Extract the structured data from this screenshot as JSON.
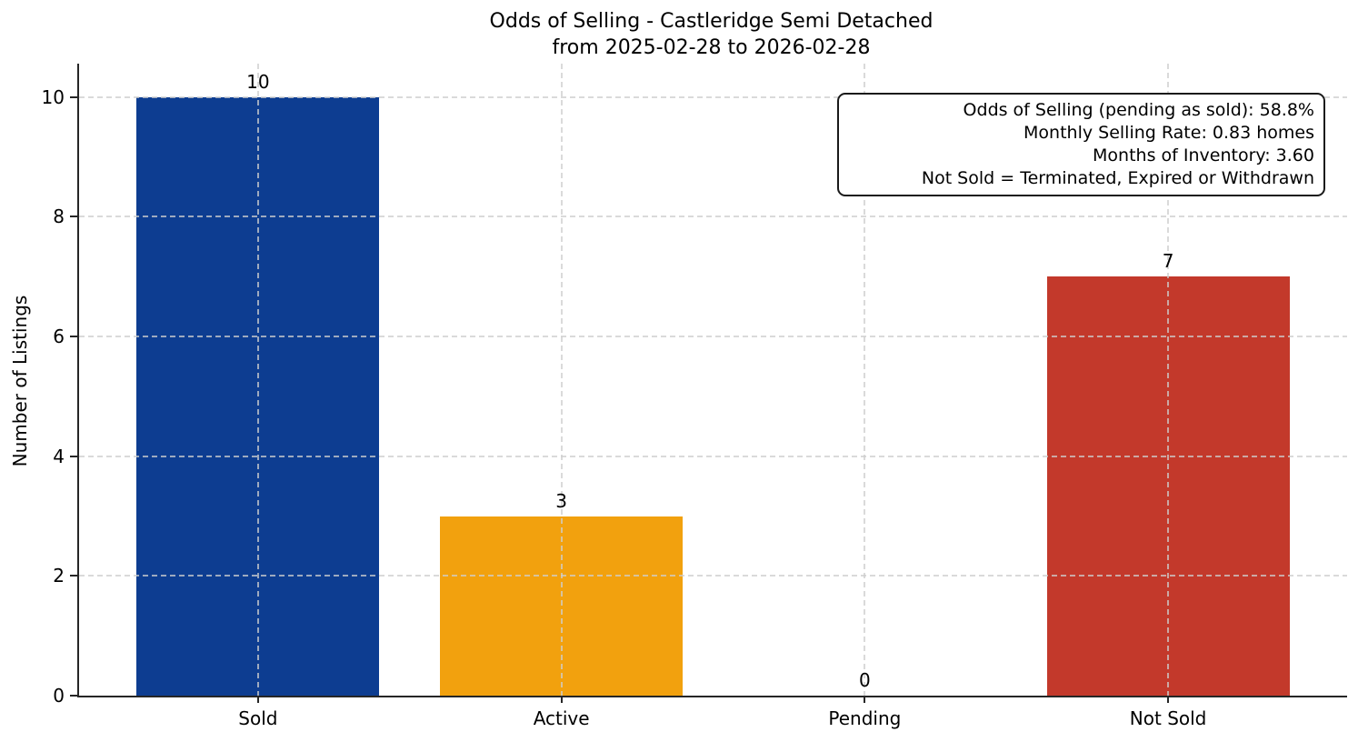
{
  "title": {
    "line1": "Odds of Selling - Castleridge Semi Detached",
    "line2": "from 2025-02-28 to 2026-02-28"
  },
  "annotation": {
    "lines": [
      "Odds of Selling (pending as sold): 58.8%",
      "Monthly Selling Rate: 0.83 homes",
      "Months of Inventory: 3.60",
      "Not Sold = Terminated, Expired or Withdrawn"
    ]
  },
  "chart_data": {
    "type": "bar",
    "title": "Odds of Selling - Castleridge Semi Detached from 2025-02-28 to 2026-02-28",
    "categories": [
      "Sold",
      "Active",
      "Pending",
      "Not Sold"
    ],
    "values": [
      10,
      3,
      0,
      7
    ],
    "bar_value_labels": [
      "10",
      "3",
      "0",
      "7"
    ],
    "bar_colors": [
      "#0d3d91",
      "#f2a10e",
      "transparent",
      "#c3392b"
    ],
    "xlabel": "",
    "ylabel": "Number of Listings",
    "ylim": [
      0,
      10.56
    ],
    "yticks": [
      0,
      2,
      4,
      6,
      8,
      10
    ],
    "ytick_labels": [
      "0",
      "2",
      "4",
      "6",
      "8",
      "10"
    ],
    "bar_width_fraction": 0.8,
    "grid": "dashed, drawn above bars",
    "legend_position": "none",
    "axis_color": "#262626",
    "grid_color": "#cecece",
    "text_color": "#000000"
  }
}
